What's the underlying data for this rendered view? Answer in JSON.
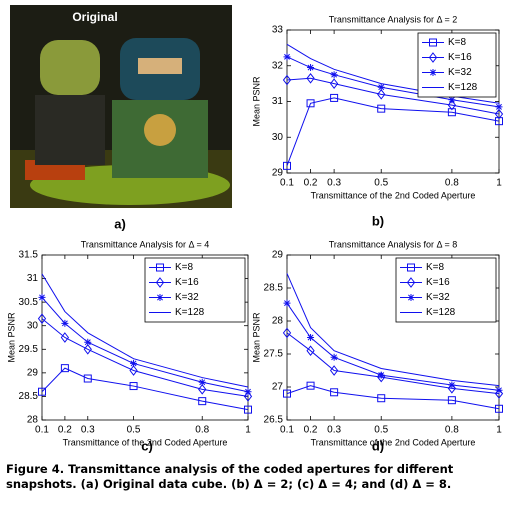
{
  "image_label": "Original",
  "panel_labels": [
    "a)",
    "b)",
    "c)",
    "d)"
  ],
  "caption": "Figure 4. Transmittance analysis of the coded apertures for different snapshots. (a) Original data cube. (b) Δ = 2; (c) Δ = 4; and (d) Δ = 8.",
  "chart_data": [
    {
      "type": "line",
      "title": "Transmittance Analysis for Δ = 2",
      "x_label": "Transmittance of the 2nd Coded Aperture",
      "y_label": "Mean PSNR",
      "x": [
        0.1,
        0.2,
        0.3,
        0.5,
        0.8,
        1
      ],
      "xlim": [
        0.1,
        1
      ],
      "xticks": [
        0.1,
        0.2,
        0.3,
        0.5,
        0.8,
        1
      ],
      "ylim": [
        29,
        33
      ],
      "yticks": [
        29,
        30,
        31,
        32,
        33
      ],
      "legend": "upper right",
      "series": [
        {
          "name": "K=8",
          "color": "#1010ee",
          "marker": "square",
          "values": [
            29.2,
            30.95,
            31.1,
            30.8,
            30.7,
            30.45
          ]
        },
        {
          "name": "K=16",
          "color": "#1010ee",
          "marker": "diamond",
          "values": [
            31.6,
            31.65,
            31.5,
            31.2,
            30.9,
            30.65
          ]
        },
        {
          "name": "K=32",
          "color": "#1010ee",
          "marker": "asterisk",
          "values": [
            32.25,
            31.95,
            31.75,
            31.4,
            31.05,
            30.85
          ]
        },
        {
          "name": "K=128",
          "color": "#1010ee",
          "marker": "none",
          "values": [
            32.6,
            32.2,
            31.9,
            31.5,
            31.15,
            30.95
          ]
        }
      ]
    },
    {
      "type": "line",
      "title": "Transmittance Analysis for Δ = 4",
      "x_label": "Transmittance of the 2nd Coded Aperture",
      "y_label": "Mean PSNR",
      "x": [
        0.1,
        0.2,
        0.3,
        0.5,
        0.8,
        1
      ],
      "xlim": [
        0.1,
        1
      ],
      "xticks": [
        0.1,
        0.2,
        0.3,
        0.5,
        0.8,
        1
      ],
      "ylim": [
        28,
        31.5
      ],
      "yticks": [
        28,
        28.5,
        29,
        29.5,
        30,
        30.5,
        31,
        31.5
      ],
      "legend": "upper right",
      "series": [
        {
          "name": "K=8",
          "color": "#1010ee",
          "marker": "square",
          "values": [
            28.6,
            29.1,
            28.88,
            28.72,
            28.4,
            28.22
          ]
        },
        {
          "name": "K=16",
          "color": "#1010ee",
          "marker": "diamond",
          "values": [
            30.15,
            29.75,
            29.5,
            29.05,
            28.65,
            28.5
          ]
        },
        {
          "name": "K=32",
          "color": "#1010ee",
          "marker": "asterisk",
          "values": [
            30.6,
            30.05,
            29.65,
            29.2,
            28.8,
            28.6
          ]
        },
        {
          "name": "K=128",
          "color": "#1010ee",
          "marker": "none",
          "values": [
            31.1,
            30.3,
            29.85,
            29.3,
            28.9,
            28.7
          ]
        }
      ]
    },
    {
      "type": "line",
      "title": "Transmittance Analysis for Δ = 8",
      "x_label": "Transmittance of the 2nd Coded Aperture",
      "y_label": "Mean PSNR",
      "x": [
        0.1,
        0.2,
        0.3,
        0.5,
        0.8,
        1
      ],
      "xlim": [
        0.1,
        1
      ],
      "xticks": [
        0.1,
        0.2,
        0.3,
        0.5,
        0.8,
        1
      ],
      "ylim": [
        26.5,
        29
      ],
      "yticks": [
        26.5,
        27,
        27.5,
        28,
        28.5,
        29
      ],
      "legend": "upper right",
      "series": [
        {
          "name": "K=8",
          "color": "#1010ee",
          "marker": "square",
          "values": [
            26.9,
            27.02,
            26.92,
            26.83,
            26.8,
            26.67
          ]
        },
        {
          "name": "K=16",
          "color": "#1010ee",
          "marker": "diamond",
          "values": [
            27.82,
            27.55,
            27.25,
            27.15,
            26.98,
            26.9
          ]
        },
        {
          "name": "K=32",
          "color": "#1010ee",
          "marker": "asterisk",
          "values": [
            28.27,
            27.75,
            27.45,
            27.18,
            27.03,
            26.95
          ]
        },
        {
          "name": "K=128",
          "color": "#1010ee",
          "marker": "none",
          "values": [
            28.72,
            27.9,
            27.55,
            27.28,
            27.1,
            27.02
          ]
        }
      ]
    }
  ]
}
